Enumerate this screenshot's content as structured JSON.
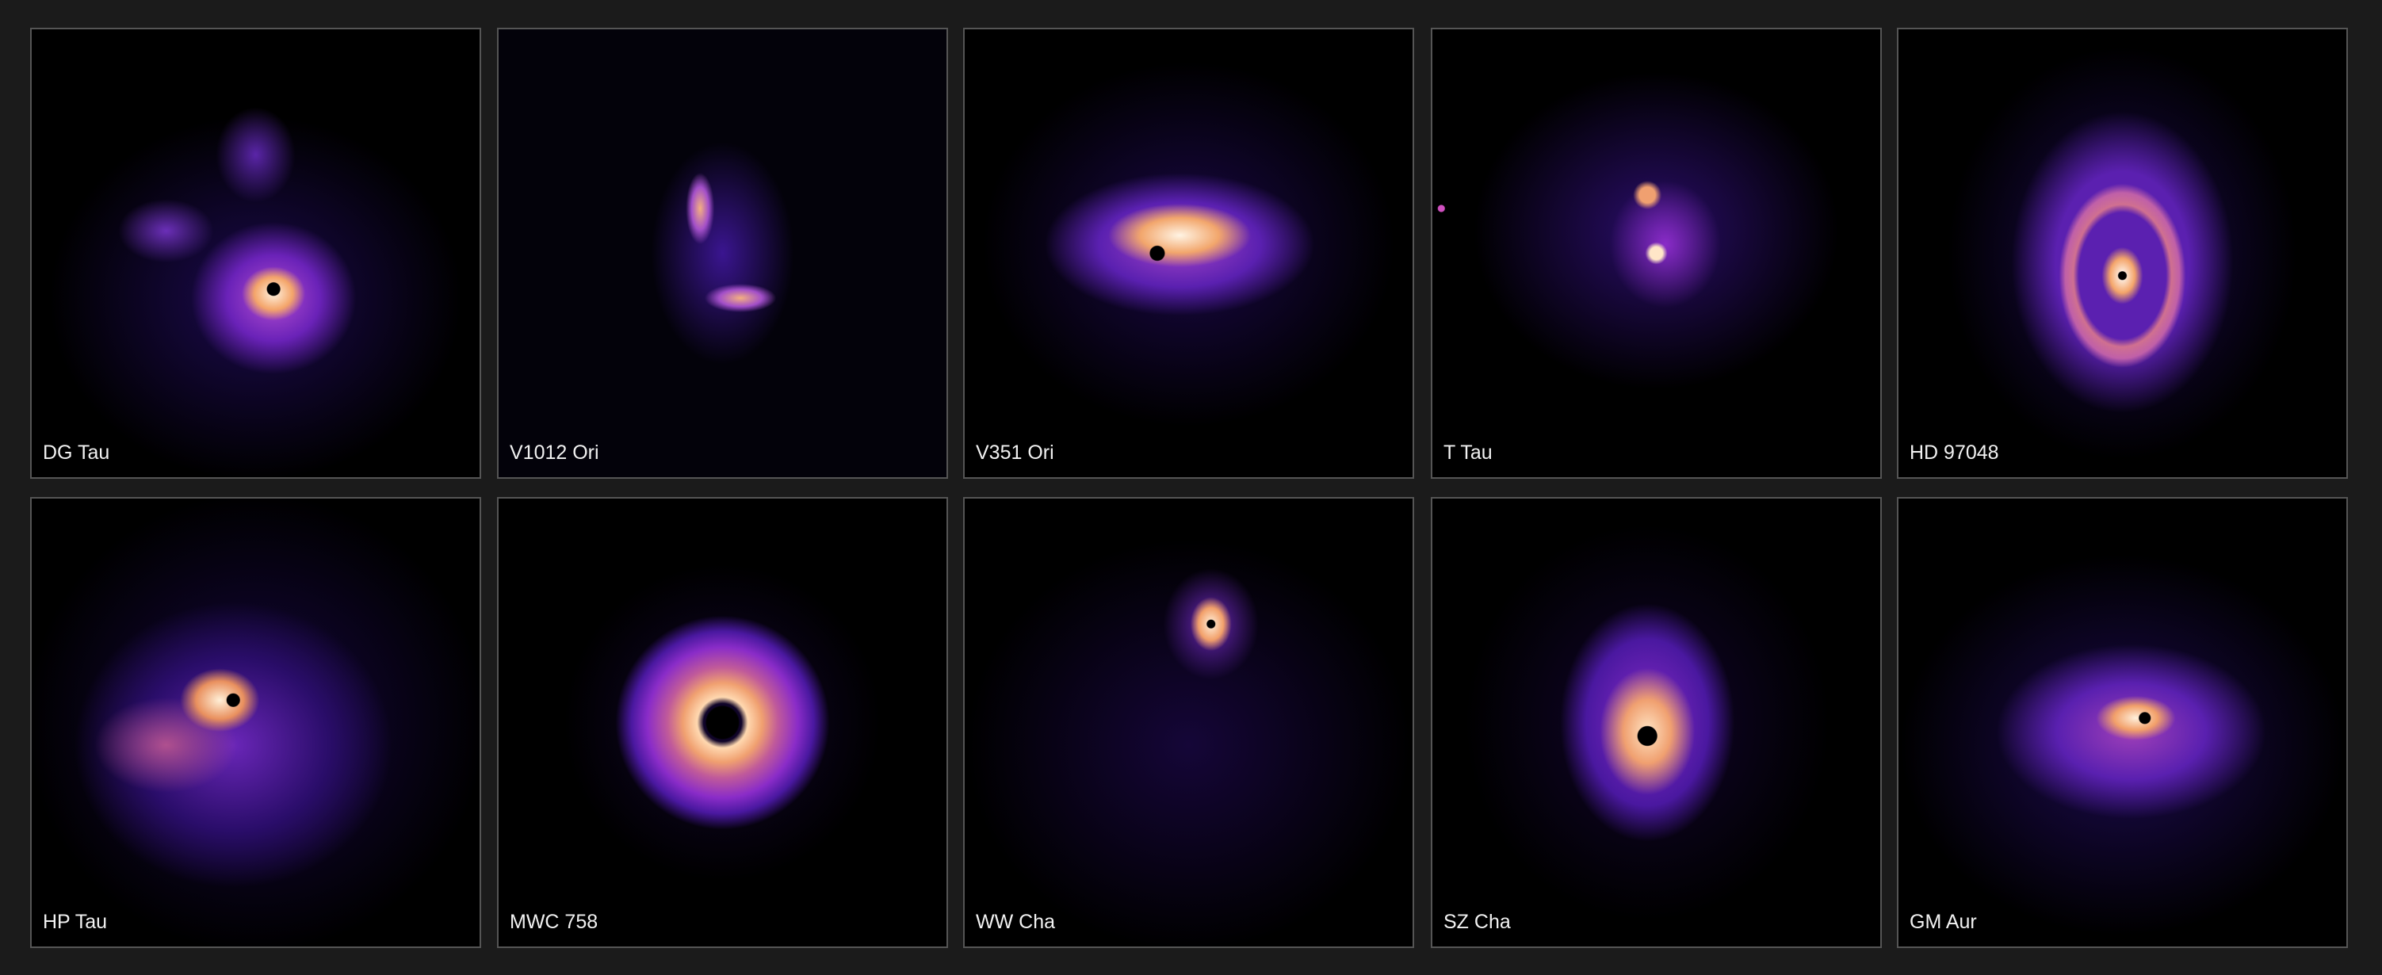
{
  "panels": [
    {
      "label": "DG Tau"
    },
    {
      "label": "V1012 Ori"
    },
    {
      "label": "V351 Ori"
    },
    {
      "label": "T Tau"
    },
    {
      "label": "HD 97048"
    },
    {
      "label": "HP Tau"
    },
    {
      "label": "MWC 758"
    },
    {
      "label": "WW Cha"
    },
    {
      "label": "SZ Cha"
    },
    {
      "label": "GM Aur"
    }
  ],
  "colors": {
    "background": "#1b1b1b",
    "panel": "#000000",
    "border": "#555555",
    "glow": "#f4a56a",
    "mid": "#8a2cc8",
    "faint": "#2a0d6a"
  }
}
